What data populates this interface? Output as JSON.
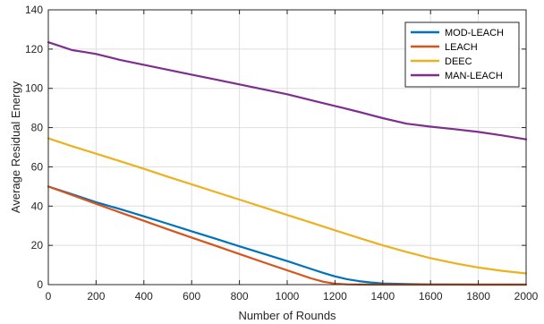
{
  "chart_data": {
    "type": "line",
    "title": "",
    "xlabel": "Number of Rounds",
    "ylabel": "Average Residual Energy",
    "xlim": [
      0,
      2000
    ],
    "ylim": [
      0,
      140
    ],
    "xticks": [
      0,
      200,
      400,
      600,
      800,
      1000,
      1200,
      1400,
      1600,
      1800,
      2000
    ],
    "yticks": [
      0,
      20,
      40,
      60,
      80,
      100,
      120,
      140
    ],
    "grid": true,
    "legend_position": "top-right",
    "series": [
      {
        "name": "MOD-LEACH",
        "color": "#0072BD",
        "x": [
          0,
          100,
          200,
          300,
          400,
          500,
          600,
          700,
          800,
          900,
          1000,
          1100,
          1150,
          1200,
          1250,
          1300,
          1350,
          1400,
          1500,
          1600,
          1700,
          1800,
          1900,
          2000
        ],
        "y": [
          50,
          46,
          42,
          38.5,
          34.8,
          31,
          27.2,
          23.4,
          19.5,
          15.8,
          12,
          8,
          6,
          4.2,
          2.8,
          1.8,
          1.1,
          0.6,
          0.3,
          0.1,
          0.05,
          0.02,
          0.01,
          0
        ]
      },
      {
        "name": "LEACH",
        "color": "#D95319",
        "x": [
          0,
          100,
          200,
          300,
          400,
          500,
          600,
          700,
          800,
          900,
          1000,
          1100,
          1150,
          1200,
          1250,
          1300,
          1400,
          1500,
          1600,
          1700,
          1800,
          1900,
          2000
        ],
        "y": [
          50,
          45.6,
          41.2,
          36.8,
          32.5,
          28.2,
          24,
          19.8,
          15.6,
          11.4,
          7.3,
          3.2,
          1.5,
          0.5,
          0.15,
          0.05,
          0,
          0,
          0,
          0,
          0,
          0,
          0
        ]
      },
      {
        "name": "DEEC",
        "color": "#EDB120",
        "x": [
          0,
          100,
          200,
          300,
          400,
          500,
          600,
          700,
          800,
          900,
          1000,
          1100,
          1200,
          1300,
          1400,
          1500,
          1600,
          1700,
          1800,
          1900,
          2000
        ],
        "y": [
          74.5,
          70.5,
          66.7,
          62.9,
          59,
          55,
          51.1,
          47.2,
          43.3,
          39.4,
          35.5,
          31.6,
          27.7,
          23.8,
          20,
          16.6,
          13.5,
          10.9,
          8.7,
          7,
          5.7
        ]
      },
      {
        "name": "MAN-LEACH",
        "color": "#7E2F8E",
        "x": [
          0,
          50,
          100,
          150,
          200,
          300,
          400,
          500,
          600,
          700,
          800,
          900,
          1000,
          1100,
          1200,
          1300,
          1400,
          1500,
          1600,
          1700,
          1800,
          1900,
          2000
        ],
        "y": [
          123.5,
          121.5,
          119.5,
          118.5,
          117.5,
          114.5,
          112,
          109.5,
          107,
          104.5,
          102,
          99.5,
          97,
          94,
          91,
          88,
          84.8,
          82,
          80.5,
          79.2,
          77.8,
          76,
          74
        ]
      }
    ]
  }
}
